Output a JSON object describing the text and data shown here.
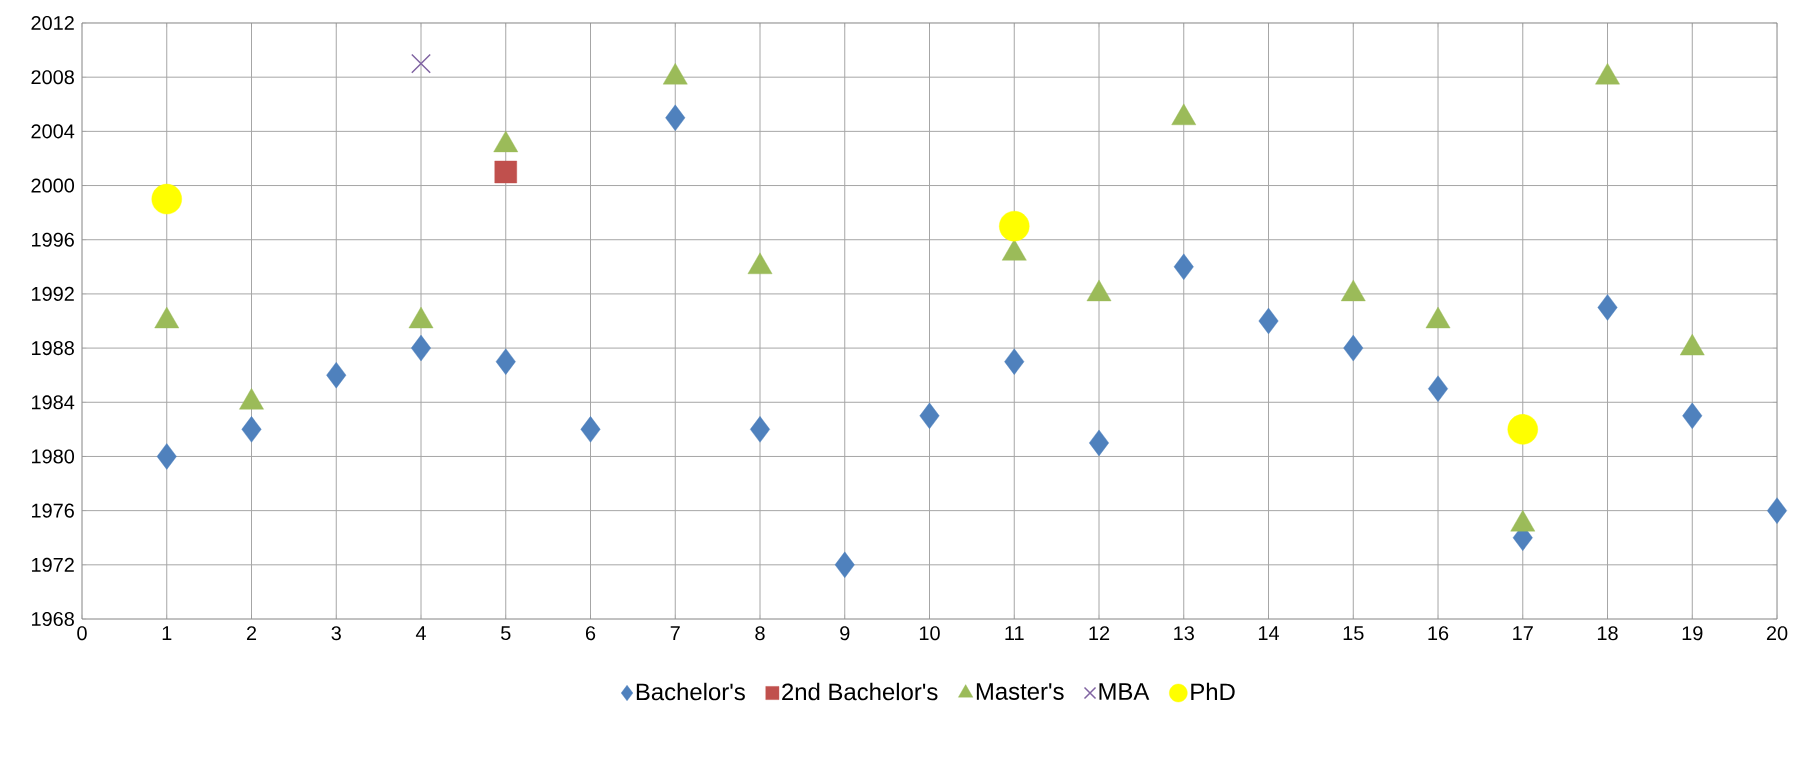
{
  "chart_data": {
    "type": "scatter",
    "x": [
      1,
      2,
      3,
      4,
      5,
      6,
      7,
      8,
      9,
      10,
      11,
      12,
      13,
      14,
      15,
      16,
      17,
      18,
      19,
      20
    ],
    "series": [
      {
        "name": "Bachelor's",
        "color": "#4f81bd",
        "marker": "diamond",
        "values": [
          1980,
          1982,
          1986,
          1988,
          1987,
          1982,
          2005,
          1982,
          1972,
          1983,
          1987,
          1981,
          1994,
          1990,
          1988,
          1985,
          1974,
          1991,
          1983,
          1976
        ]
      },
      {
        "name": "2nd Bachelor's",
        "color": "#c0504d",
        "marker": "square",
        "x": [
          5
        ],
        "values": [
          2001
        ]
      },
      {
        "name": "Master's",
        "color": "#9bbb59",
        "marker": "triangle",
        "x": [
          1,
          2,
          4,
          5,
          7,
          8,
          11,
          12,
          13,
          15,
          16,
          17,
          18,
          19
        ],
        "values": [
          1990,
          1984,
          1990,
          2003,
          2008,
          1994,
          1995,
          1992,
          2005,
          1992,
          1990,
          1975,
          2008,
          1988
        ]
      },
      {
        "name": "MBA",
        "color": "#8064a2",
        "marker": "cross",
        "x": [
          4
        ],
        "values": [
          2009
        ]
      },
      {
        "name": "PhD",
        "color": "#ffff00",
        "marker": "circle",
        "x": [
          1,
          11,
          17
        ],
        "values": [
          1999,
          1997,
          1982
        ]
      }
    ],
    "xlim": [
      0,
      20
    ],
    "xticks": [
      0,
      1,
      2,
      3,
      4,
      5,
      6,
      7,
      8,
      9,
      10,
      11,
      12,
      13,
      14,
      15,
      16,
      17,
      18,
      19,
      20
    ],
    "ylim": [
      1968,
      2012
    ],
    "yticks": [
      1968,
      1972,
      1976,
      1980,
      1984,
      1988,
      1992,
      1996,
      2000,
      2004,
      2008,
      2012
    ],
    "grid": true,
    "legend": "bottom"
  }
}
